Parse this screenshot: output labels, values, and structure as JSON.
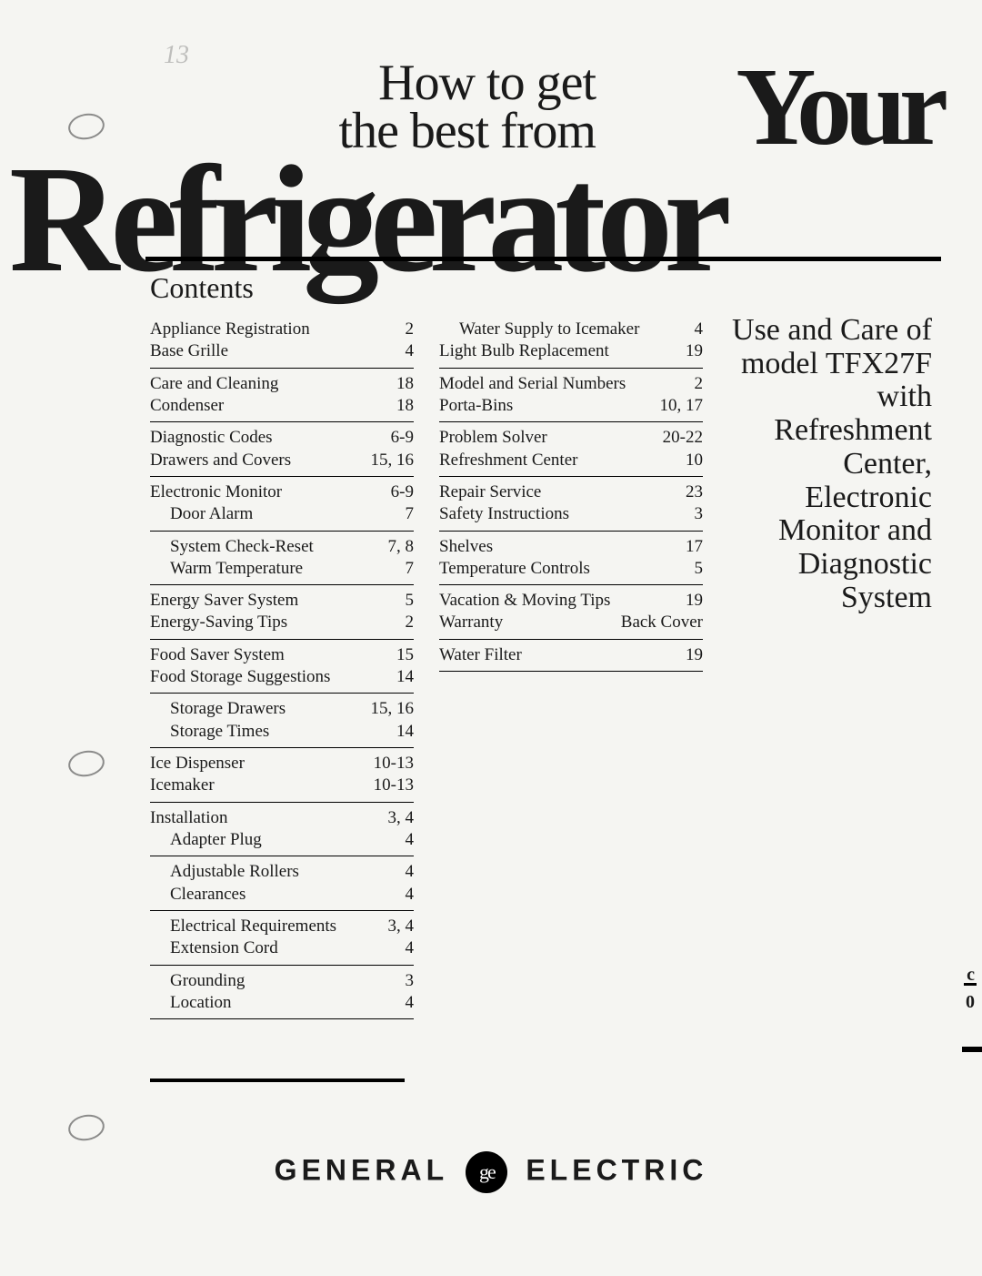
{
  "title": {
    "line1": "How to get",
    "line2": "the best from",
    "your": "Your",
    "product": "Refrigerator"
  },
  "scribble": "13",
  "contents_heading": "Contents",
  "col1": [
    {
      "rows": [
        {
          "label": "Appliance Registration",
          "page": "2",
          "indent": false
        },
        {
          "label": "Base Grille",
          "page": "4",
          "indent": false
        }
      ]
    },
    {
      "rows": [
        {
          "label": "Care and Cleaning",
          "page": "18",
          "indent": false
        },
        {
          "label": "Condenser",
          "page": "18",
          "indent": false
        }
      ]
    },
    {
      "rows": [
        {
          "label": "Diagnostic Codes",
          "page": "6-9",
          "indent": false
        },
        {
          "label": "Drawers and Covers",
          "page": "15, 16",
          "indent": false
        }
      ]
    },
    {
      "rows": [
        {
          "label": "Electronic Monitor",
          "page": "6-9",
          "indent": false
        },
        {
          "label": "Door Alarm",
          "page": "7",
          "indent": true
        }
      ]
    },
    {
      "rows": [
        {
          "label": "System Check-Reset",
          "page": "7, 8",
          "indent": true
        },
        {
          "label": "Warm Temperature",
          "page": "7",
          "indent": true
        }
      ]
    },
    {
      "rows": [
        {
          "label": "Energy Saver System",
          "page": "5",
          "indent": false
        },
        {
          "label": "Energy-Saving Tips",
          "page": "2",
          "indent": false
        }
      ]
    },
    {
      "rows": [
        {
          "label": "Food Saver System",
          "page": "15",
          "indent": false
        },
        {
          "label": "Food Storage Suggestions",
          "page": "14",
          "indent": false
        }
      ]
    },
    {
      "rows": [
        {
          "label": "Storage Drawers",
          "page": "15, 16",
          "indent": true
        },
        {
          "label": "Storage Times",
          "page": "14",
          "indent": true
        }
      ]
    },
    {
      "rows": [
        {
          "label": "Ice Dispenser",
          "page": "10-13",
          "indent": false
        },
        {
          "label": "Icemaker",
          "page": "10-13",
          "indent": false
        }
      ]
    },
    {
      "rows": [
        {
          "label": "Installation",
          "page": "3, 4",
          "indent": false
        },
        {
          "label": "Adapter Plug",
          "page": "4",
          "indent": true
        }
      ]
    },
    {
      "rows": [
        {
          "label": "Adjustable Rollers",
          "page": "4",
          "indent": true
        },
        {
          "label": "Clearances",
          "page": "4",
          "indent": true
        }
      ]
    },
    {
      "rows": [
        {
          "label": "Electrical Requirements",
          "page": "3, 4",
          "indent": true
        },
        {
          "label": "Extension Cord",
          "page": "4",
          "indent": true
        }
      ]
    },
    {
      "rows": [
        {
          "label": "Grounding",
          "page": "3",
          "indent": true
        },
        {
          "label": "Location",
          "page": "4",
          "indent": true
        }
      ]
    }
  ],
  "col2": [
    {
      "rows": [
        {
          "label": "Water Supply to Icemaker",
          "page": "4",
          "indent": true
        },
        {
          "label": "Light Bulb Replacement",
          "page": "19",
          "indent": false
        }
      ]
    },
    {
      "rows": [
        {
          "label": "Model and Serial Numbers",
          "page": "2",
          "indent": false
        },
        {
          "label": "Porta-Bins",
          "page": "10, 17",
          "indent": false
        }
      ]
    },
    {
      "rows": [
        {
          "label": "Problem Solver",
          "page": "20-22",
          "indent": false
        },
        {
          "label": "Refreshment Center",
          "page": "10",
          "indent": false
        }
      ]
    },
    {
      "rows": [
        {
          "label": "Repair Service",
          "page": "23",
          "indent": false
        },
        {
          "label": "Safety Instructions",
          "page": "3",
          "indent": false
        }
      ]
    },
    {
      "rows": [
        {
          "label": "Shelves",
          "page": "17",
          "indent": false
        },
        {
          "label": "Temperature Controls",
          "page": "5",
          "indent": false
        }
      ]
    },
    {
      "rows": [
        {
          "label": "Vacation & Moving Tips",
          "page": "19",
          "indent": false
        },
        {
          "label": "Warranty",
          "page": "Back Cover",
          "indent": false
        }
      ]
    },
    {
      "rows": [
        {
          "label": "Water Filter",
          "page": "19",
          "indent": false
        }
      ]
    }
  ],
  "side": [
    "Use and Care of",
    "model TFX27F",
    "with",
    "Refreshment",
    "Center,",
    "Electronic",
    "Monitor and",
    "Diagnostic",
    "System"
  ],
  "brand": {
    "left": "GENERAL",
    "mono": "ge",
    "right": "ELECTRIC"
  },
  "edge": {
    "c": "c",
    "zero": "0"
  }
}
